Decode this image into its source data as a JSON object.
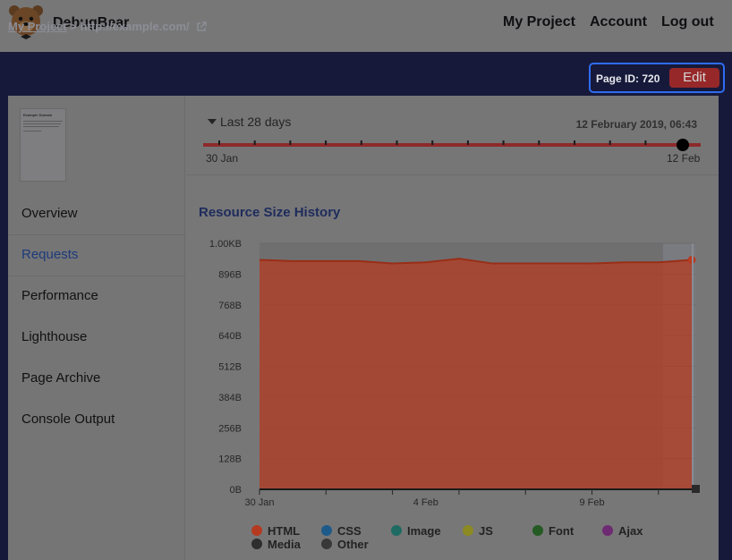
{
  "header": {
    "brand": "DebugBear",
    "nav": [
      "My Project",
      "Account",
      "Log out"
    ]
  },
  "breadcrumb": {
    "project": "My Project",
    "separator": ">",
    "url": "http://example.com/"
  },
  "page_id": {
    "label": "Page ID: 720",
    "edit_label": "Edit"
  },
  "thumbnail": {
    "title": "Example Domain"
  },
  "sidebar": {
    "items": [
      {
        "label": "Overview"
      },
      {
        "label": "Requests",
        "active": true
      },
      {
        "label": "Performance"
      },
      {
        "label": "Lighthouse"
      },
      {
        "label": "Page Archive"
      },
      {
        "label": "Console Output"
      }
    ]
  },
  "timeline": {
    "range_label": "Last 28 days",
    "selected_date": "12 February 2019, 06:43",
    "start_label": "30 Jan",
    "end_label": "12 Feb"
  },
  "section": {
    "title": "Resource Size History"
  },
  "colors": {
    "html": "#b43b20",
    "css": "#1d5a8a",
    "image": "#1e6b63",
    "js": "#8c8a22",
    "font": "#245a23",
    "ajax": "#6e2a72",
    "media": "#2e2e2e",
    "other": "#383838"
  },
  "chart_data": {
    "type": "area",
    "title": "Resource Size History",
    "x": [
      "30 Jan",
      "31 Jan",
      "1 Feb",
      "2 Feb",
      "3 Feb",
      "4 Feb",
      "5 Feb",
      "6 Feb",
      "7 Feb",
      "8 Feb",
      "9 Feb",
      "10 Feb",
      "11 Feb",
      "12 Feb"
    ],
    "xticks": [
      "30 Jan",
      "4 Feb",
      "9 Feb"
    ],
    "yticks": [
      "0B",
      "128B",
      "256B",
      "384B",
      "512B",
      "640B",
      "768B",
      "896B",
      "1.00KB"
    ],
    "ylim": [
      0,
      1024
    ],
    "series": [
      {
        "name": "HTML",
        "values": [
          955,
          950,
          950,
          950,
          940,
          945,
          960,
          940,
          940,
          940,
          940,
          945,
          945,
          955
        ]
      }
    ],
    "legend": [
      "HTML",
      "CSS",
      "Image",
      "JS",
      "Font",
      "Ajax",
      "Media",
      "Other"
    ],
    "legend_position": "bottom"
  }
}
